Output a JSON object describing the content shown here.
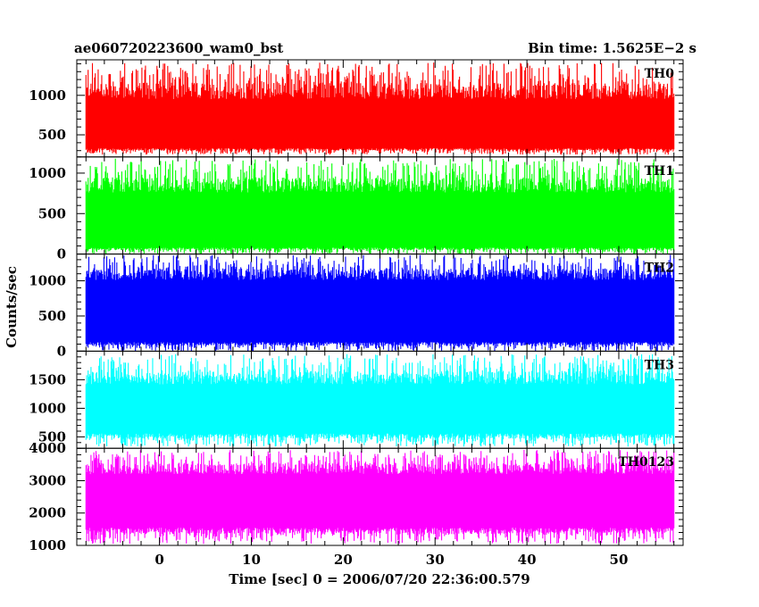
{
  "chart_data": {
    "type": "line",
    "title_left": "ae060720223600_wam0_bst",
    "title_right": "Bin time: 1.5625E−2 s",
    "xlabel": "Time [sec] 0 = 2006/07/20 22:36:00.579",
    "ylabel": "Counts/sec",
    "xlim": [
      -9,
      57
    ],
    "x_data_range": [
      -8,
      56
    ],
    "bin_time": 0.015625,
    "x_ticks": [
      0,
      10,
      20,
      30,
      40,
      50
    ],
    "grid": false,
    "panels": [
      {
        "name": "TH0",
        "color": "#ff0000",
        "ylim": [
          220,
          1450
        ],
        "y_ticks": [
          500,
          1000
        ],
        "band": [
          330,
          950
        ],
        "spike_max": 1420,
        "dip_min": 250
      },
      {
        "name": "TH1",
        "color": "#00ff00",
        "ylim": [
          0,
          1200
        ],
        "y_ticks": [
          0,
          500,
          1000
        ],
        "band": [
          80,
          760
        ],
        "spike_max": 1180,
        "dip_min": 0
      },
      {
        "name": "TH2",
        "color": "#0000ff",
        "ylim": [
          0,
          1380
        ],
        "y_ticks": [
          0,
          500,
          1000
        ],
        "band": [
          130,
          1010
        ],
        "spike_max": 1370,
        "dip_min": 0
      },
      {
        "name": "TH3",
        "color": "#00ffff",
        "ylim": [
          300,
          2000
        ],
        "y_ticks": [
          500,
          1000,
          1500
        ],
        "band": [
          560,
          1420
        ],
        "spike_max": 1950,
        "dip_min": 330
      },
      {
        "name": "TH0123",
        "color": "#ff00ff",
        "ylim": [
          1000,
          4000
        ],
        "y_ticks": [
          1000,
          2000,
          3000,
          4000
        ],
        "band": [
          1550,
          3200
        ],
        "spike_max": 3950,
        "dip_min": 1050
      }
    ]
  }
}
